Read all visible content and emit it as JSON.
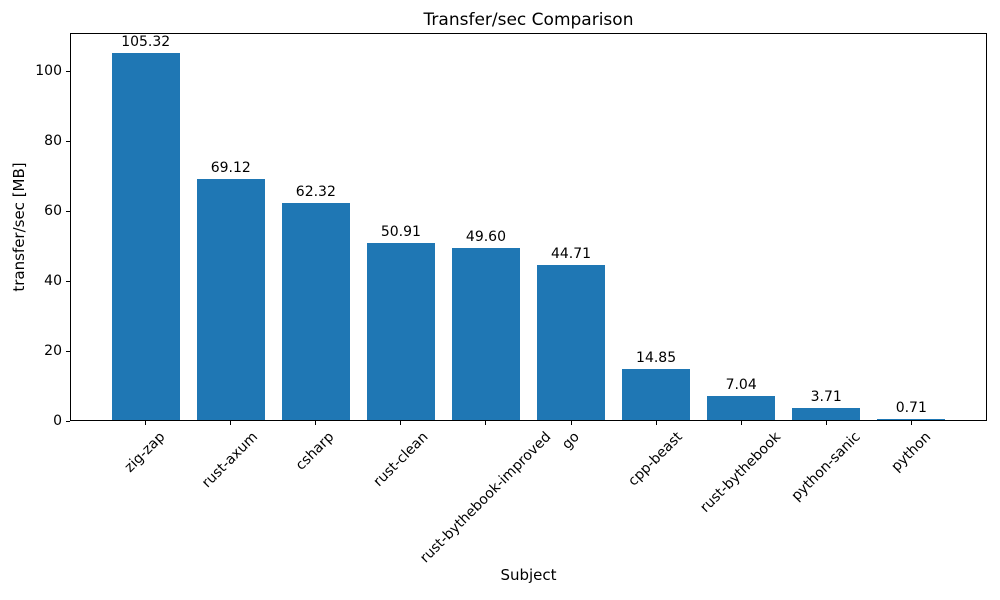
{
  "chart_data": {
    "type": "bar",
    "title": "Transfer/sec Comparison",
    "xlabel": "Subject",
    "ylabel": "transfer/sec [MB]",
    "categories": [
      "zig-zap",
      "rust-axum",
      "csharp",
      "rust-clean",
      "rust-bythebook-improved",
      "go",
      "cpp-beast",
      "rust-bythebook",
      "python-sanic",
      "python"
    ],
    "values": [
      105.32,
      69.12,
      62.32,
      50.91,
      49.6,
      44.71,
      14.85,
      7.04,
      3.71,
      0.71
    ],
    "value_labels": [
      "105.32",
      "69.12",
      "62.32",
      "50.91",
      "49.60",
      "44.71",
      "14.85",
      "7.04",
      "3.71",
      "0.71"
    ],
    "yticks": [
      0,
      20,
      40,
      60,
      80,
      100
    ],
    "ylim": [
      0,
      111
    ],
    "xtick_rotation_deg": 45,
    "bar_color": "#1f77b4",
    "spine_color": "#000000",
    "text_color": "#000000",
    "background": "#ffffff",
    "grid": false,
    "legend": null,
    "bar_label_position": "above"
  }
}
